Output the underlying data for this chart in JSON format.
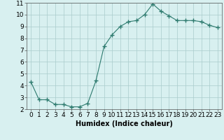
{
  "x": [
    0,
    1,
    2,
    3,
    4,
    5,
    6,
    7,
    8,
    9,
    10,
    11,
    12,
    13,
    14,
    15,
    16,
    17,
    18,
    19,
    20,
    21,
    22,
    23
  ],
  "y": [
    4.3,
    2.8,
    2.8,
    2.4,
    2.4,
    2.2,
    2.2,
    2.5,
    4.4,
    7.3,
    8.3,
    9.0,
    9.4,
    9.5,
    10.0,
    10.9,
    10.3,
    9.9,
    9.5,
    9.5,
    9.5,
    9.4,
    9.1,
    8.9
  ],
  "line_color": "#2d7a6e",
  "marker": "+",
  "marker_size": 4,
  "marker_linewidth": 1.0,
  "line_width": 0.8,
  "background_color": "#d8f0f0",
  "grid_color": "#aacccc",
  "xlabel": "Humidex (Indice chaleur)",
  "xlim": [
    -0.5,
    23.5
  ],
  "ylim": [
    2,
    11
  ],
  "xticks": [
    0,
    1,
    2,
    3,
    4,
    5,
    6,
    7,
    8,
    9,
    10,
    11,
    12,
    13,
    14,
    15,
    16,
    17,
    18,
    19,
    20,
    21,
    22,
    23
  ],
  "yticks": [
    2,
    3,
    4,
    5,
    6,
    7,
    8,
    9,
    10,
    11
  ],
  "xlabel_fontsize": 7,
  "tick_fontsize": 6.5
}
